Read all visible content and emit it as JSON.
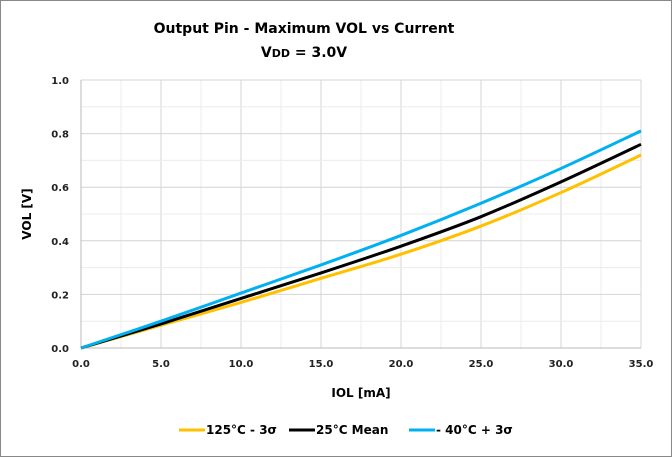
{
  "chart_data": {
    "type": "line",
    "title": "Output Pin - Maximum VOL vs Current",
    "subtitle_main": "V",
    "subtitle_sub": "DD",
    "subtitle_rest": " = 3.0V",
    "xlabel": "IOL [mA]",
    "ylabel": "VOL [V]",
    "xlim": [
      0,
      35
    ],
    "ylim": [
      0,
      1.0
    ],
    "xticks": [
      "0.0",
      "5.0",
      "10.0",
      "15.0",
      "20.0",
      "25.0",
      "30.0",
      "35.0"
    ],
    "yticks": [
      "0.0",
      "0.2",
      "0.4",
      "0.6",
      "0.8",
      "1.0"
    ],
    "grid": true,
    "legend_position": "bottom",
    "x": [
      0,
      5,
      10,
      15,
      20,
      25,
      30,
      35
    ],
    "series": [
      {
        "name": "125°C - 3σ",
        "color": "#FFC000",
        "values": [
          0,
          0.085,
          0.17,
          0.26,
          0.35,
          0.455,
          0.58,
          0.72
        ]
      },
      {
        "name": "25°C Mean",
        "color": "#000000",
        "values": [
          0,
          0.09,
          0.185,
          0.28,
          0.38,
          0.49,
          0.62,
          0.76
        ]
      },
      {
        "name": "- 40°C + 3σ",
        "color": "#00B0F0",
        "values": [
          0,
          0.1,
          0.205,
          0.31,
          0.42,
          0.54,
          0.67,
          0.81
        ]
      }
    ]
  }
}
